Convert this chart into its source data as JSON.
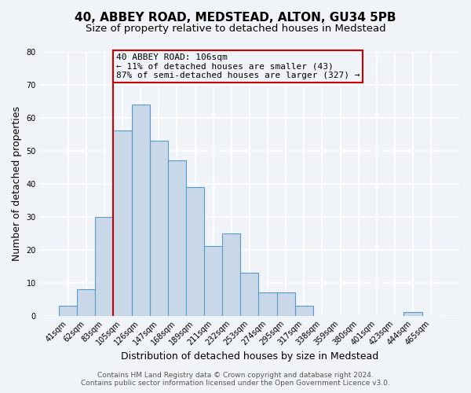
{
  "title": "40, ABBEY ROAD, MEDSTEAD, ALTON, GU34 5PB",
  "subtitle": "Size of property relative to detached houses in Medstead",
  "xlabel": "Distribution of detached houses by size in Medstead",
  "ylabel": "Number of detached properties",
  "bar_labels": [
    "41sqm",
    "62sqm",
    "83sqm",
    "105sqm",
    "126sqm",
    "147sqm",
    "168sqm",
    "189sqm",
    "211sqm",
    "232sqm",
    "253sqm",
    "274sqm",
    "295sqm",
    "317sqm",
    "338sqm",
    "359sqm",
    "380sqm",
    "401sqm",
    "423sqm",
    "444sqm",
    "465sqm"
  ],
  "bar_values": [
    3,
    8,
    30,
    56,
    64,
    53,
    47,
    39,
    21,
    25,
    13,
    7,
    7,
    3,
    0,
    0,
    0,
    0,
    0,
    1,
    0
  ],
  "bar_color": "#c8d8e8",
  "bar_edge_color": "#5a9ac8",
  "ylim": [
    0,
    80
  ],
  "yticks": [
    0,
    10,
    20,
    30,
    40,
    50,
    60,
    70,
    80
  ],
  "vline_color": "#cc0000",
  "annotation_box_text": "40 ABBEY ROAD: 106sqm\n← 11% of detached houses are smaller (43)\n87% of semi-detached houses are larger (327) →",
  "annotation_box_color": "#cc0000",
  "footer_line1": "Contains HM Land Registry data © Crown copyright and database right 2024.",
  "footer_line2": "Contains public sector information licensed under the Open Government Licence v3.0.",
  "background_color": "#f0f4f8",
  "grid_color": "#ffffff",
  "title_fontsize": 11,
  "subtitle_fontsize": 9.5,
  "axis_label_fontsize": 9,
  "tick_fontsize": 7,
  "annot_fontsize": 8,
  "footer_fontsize": 6.5
}
